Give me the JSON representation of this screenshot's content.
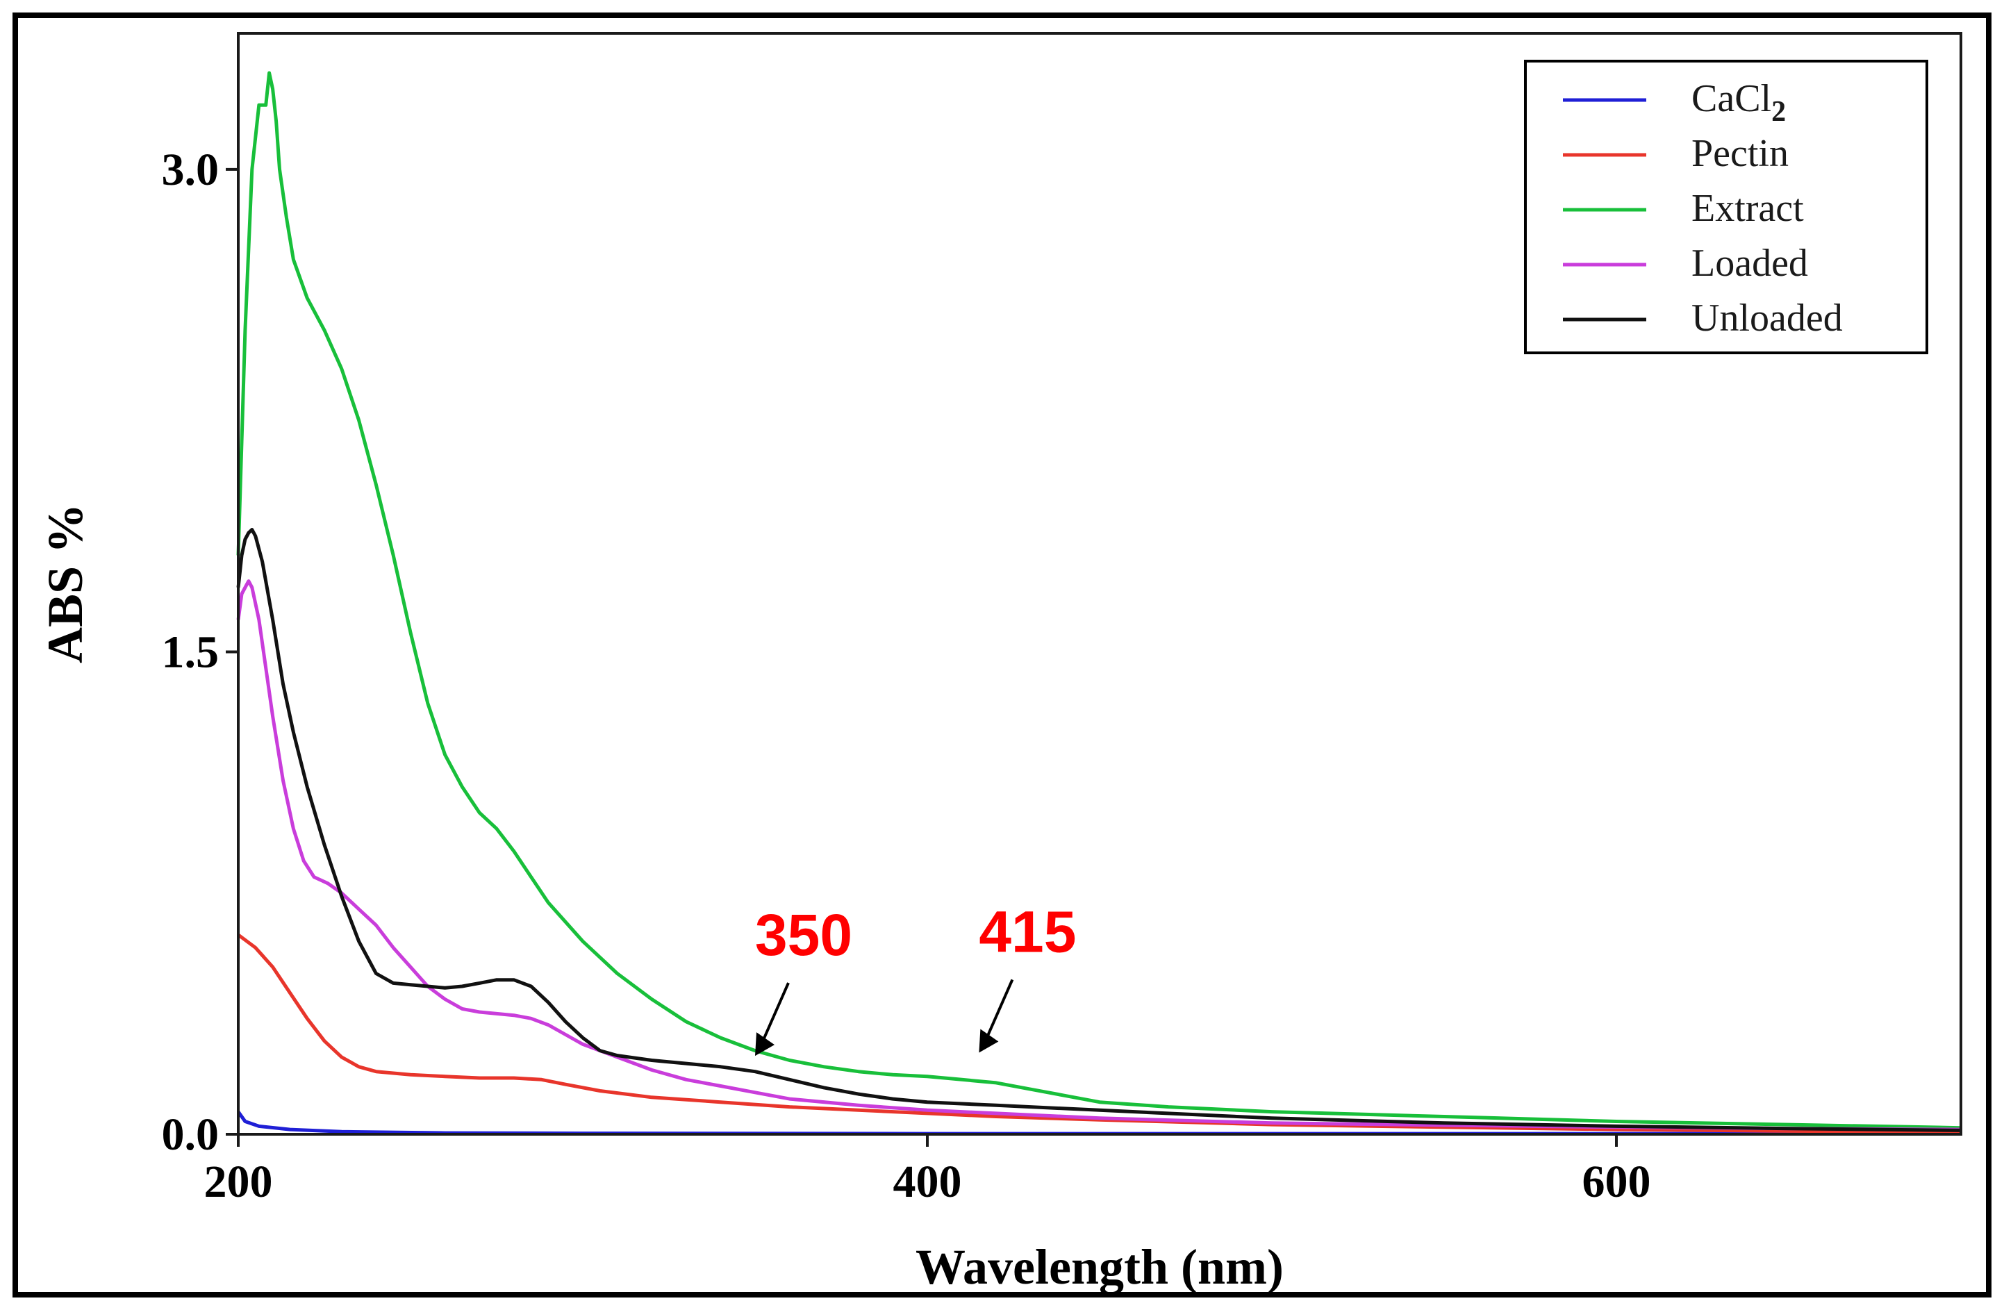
{
  "chart_data": {
    "type": "line",
    "title": "",
    "xlabel": "Wavelength (nm)",
    "ylabel": "ABS %",
    "xlim": [
      200,
      700
    ],
    "ylim": [
      0,
      3.3
    ],
    "x_ticks": [
      200,
      400,
      600
    ],
    "x_tick_labels": [
      "200",
      "400",
      "600"
    ],
    "y_ticks": [
      0.0,
      1.5,
      3.0
    ],
    "y_tick_labels": [
      "0.0",
      "1.5",
      "3.0"
    ],
    "grid": false,
    "legend_position": "top-right",
    "series": [
      {
        "name": "CaCl",
        "name_subscript": "2",
        "color": "#1f1fd6",
        "points": [
          [
            200,
            0.07
          ],
          [
            202,
            0.04
          ],
          [
            206,
            0.025
          ],
          [
            215,
            0.015
          ],
          [
            230,
            0.008
          ],
          [
            260,
            0.004
          ],
          [
            300,
            0.003
          ],
          [
            400,
            0.002
          ],
          [
            500,
            0.002
          ],
          [
            600,
            0.002
          ],
          [
            700,
            0.002
          ]
        ]
      },
      {
        "name": "Pectin",
        "name_subscript": "",
        "color": "#e8352b",
        "points": [
          [
            200,
            0.62
          ],
          [
            205,
            0.58
          ],
          [
            210,
            0.52
          ],
          [
            215,
            0.44
          ],
          [
            220,
            0.36
          ],
          [
            225,
            0.29
          ],
          [
            230,
            0.24
          ],
          [
            235,
            0.21
          ],
          [
            240,
            0.195
          ],
          [
            250,
            0.185
          ],
          [
            260,
            0.18
          ],
          [
            270,
            0.175
          ],
          [
            280,
            0.175
          ],
          [
            288,
            0.17
          ],
          [
            295,
            0.155
          ],
          [
            305,
            0.135
          ],
          [
            320,
            0.115
          ],
          [
            340,
            0.1
          ],
          [
            360,
            0.085
          ],
          [
            380,
            0.075
          ],
          [
            400,
            0.065
          ],
          [
            420,
            0.055
          ],
          [
            450,
            0.045
          ],
          [
            500,
            0.03
          ],
          [
            550,
            0.022
          ],
          [
            600,
            0.015
          ],
          [
            650,
            0.01
          ],
          [
            700,
            0.008
          ]
        ]
      },
      {
        "name": "Extract",
        "name_subscript": "",
        "color": "#18bf3a",
        "points": [
          [
            200,
            1.8
          ],
          [
            202,
            2.5
          ],
          [
            204,
            3.0
          ],
          [
            206,
            3.2
          ],
          [
            208,
            3.2
          ],
          [
            209,
            3.3
          ],
          [
            210,
            3.25
          ],
          [
            211,
            3.15
          ],
          [
            212,
            3.0
          ],
          [
            214,
            2.85
          ],
          [
            216,
            2.72
          ],
          [
            220,
            2.6
          ],
          [
            225,
            2.5
          ],
          [
            230,
            2.38
          ],
          [
            235,
            2.22
          ],
          [
            240,
            2.02
          ],
          [
            245,
            1.8
          ],
          [
            250,
            1.56
          ],
          [
            255,
            1.34
          ],
          [
            260,
            1.18
          ],
          [
            265,
            1.08
          ],
          [
            270,
            1.0
          ],
          [
            275,
            0.95
          ],
          [
            280,
            0.88
          ],
          [
            285,
            0.8
          ],
          [
            290,
            0.72
          ],
          [
            300,
            0.6
          ],
          [
            310,
            0.5
          ],
          [
            320,
            0.42
          ],
          [
            330,
            0.35
          ],
          [
            340,
            0.3
          ],
          [
            350,
            0.26
          ],
          [
            360,
            0.23
          ],
          [
            370,
            0.21
          ],
          [
            380,
            0.195
          ],
          [
            390,
            0.185
          ],
          [
            400,
            0.18
          ],
          [
            410,
            0.17
          ],
          [
            415,
            0.165
          ],
          [
            420,
            0.16
          ],
          [
            430,
            0.14
          ],
          [
            440,
            0.12
          ],
          [
            450,
            0.1
          ],
          [
            470,
            0.085
          ],
          [
            500,
            0.07
          ],
          [
            550,
            0.055
          ],
          [
            600,
            0.04
          ],
          [
            650,
            0.03
          ],
          [
            700,
            0.02
          ]
        ]
      },
      {
        "name": "Loaded",
        "name_subscript": "",
        "color": "#c93ddb",
        "points": [
          [
            200,
            1.6
          ],
          [
            201,
            1.68
          ],
          [
            202,
            1.7
          ],
          [
            203,
            1.72
          ],
          [
            204,
            1.7
          ],
          [
            206,
            1.6
          ],
          [
            208,
            1.45
          ],
          [
            210,
            1.3
          ],
          [
            213,
            1.1
          ],
          [
            216,
            0.95
          ],
          [
            219,
            0.85
          ],
          [
            222,
            0.8
          ],
          [
            226,
            0.78
          ],
          [
            230,
            0.75
          ],
          [
            235,
            0.7
          ],
          [
            240,
            0.65
          ],
          [
            245,
            0.58
          ],
          [
            250,
            0.52
          ],
          [
            255,
            0.46
          ],
          [
            260,
            0.42
          ],
          [
            265,
            0.39
          ],
          [
            270,
            0.38
          ],
          [
            275,
            0.375
          ],
          [
            280,
            0.37
          ],
          [
            285,
            0.36
          ],
          [
            290,
            0.34
          ],
          [
            295,
            0.31
          ],
          [
            300,
            0.28
          ],
          [
            310,
            0.24
          ],
          [
            320,
            0.2
          ],
          [
            330,
            0.17
          ],
          [
            340,
            0.15
          ],
          [
            350,
            0.13
          ],
          [
            360,
            0.11
          ],
          [
            380,
            0.09
          ],
          [
            400,
            0.075
          ],
          [
            420,
            0.065
          ],
          [
            450,
            0.05
          ],
          [
            500,
            0.035
          ],
          [
            550,
            0.028
          ],
          [
            600,
            0.022
          ],
          [
            650,
            0.018
          ],
          [
            700,
            0.015
          ]
        ]
      },
      {
        "name": "Unloaded",
        "name_subscript": "",
        "color": "#111111",
        "points": [
          [
            200,
            1.7
          ],
          [
            201,
            1.8
          ],
          [
            202,
            1.85
          ],
          [
            203,
            1.87
          ],
          [
            204,
            1.88
          ],
          [
            205,
            1.86
          ],
          [
            207,
            1.78
          ],
          [
            210,
            1.6
          ],
          [
            213,
            1.4
          ],
          [
            216,
            1.25
          ],
          [
            220,
            1.08
          ],
          [
            225,
            0.9
          ],
          [
            230,
            0.74
          ],
          [
            235,
            0.6
          ],
          [
            240,
            0.5
          ],
          [
            245,
            0.47
          ],
          [
            250,
            0.465
          ],
          [
            255,
            0.46
          ],
          [
            260,
            0.455
          ],
          [
            265,
            0.46
          ],
          [
            270,
            0.47
          ],
          [
            275,
            0.48
          ],
          [
            280,
            0.48
          ],
          [
            285,
            0.46
          ],
          [
            290,
            0.41
          ],
          [
            295,
            0.35
          ],
          [
            300,
            0.3
          ],
          [
            305,
            0.26
          ],
          [
            310,
            0.245
          ],
          [
            320,
            0.23
          ],
          [
            330,
            0.22
          ],
          [
            340,
            0.21
          ],
          [
            350,
            0.195
          ],
          [
            360,
            0.17
          ],
          [
            370,
            0.145
          ],
          [
            380,
            0.125
          ],
          [
            390,
            0.11
          ],
          [
            400,
            0.1
          ],
          [
            420,
            0.09
          ],
          [
            450,
            0.075
          ],
          [
            500,
            0.05
          ],
          [
            550,
            0.035
          ],
          [
            600,
            0.025
          ],
          [
            650,
            0.018
          ],
          [
            700,
            0.012
          ]
        ]
      }
    ],
    "annotations": [
      {
        "label": "350",
        "x": 350,
        "y": 0.205,
        "color": "#ff0000"
      },
      {
        "label": "415",
        "x": 415,
        "y": 0.215,
        "color": "#ff0000"
      }
    ]
  }
}
